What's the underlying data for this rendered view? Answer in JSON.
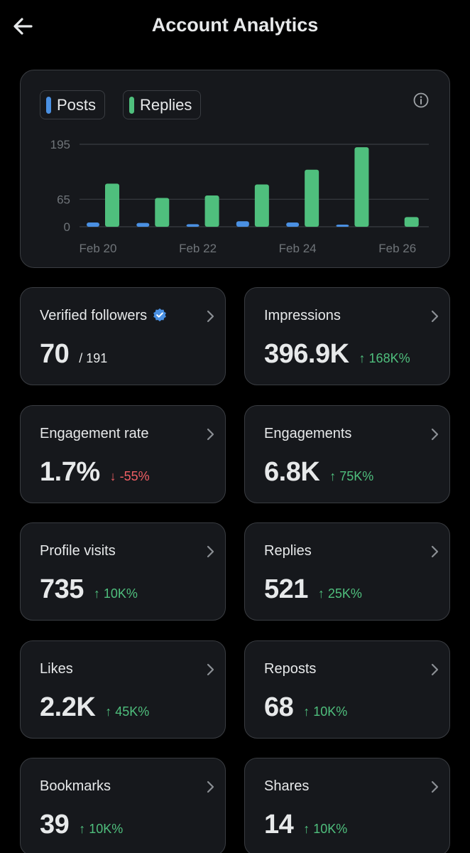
{
  "header": {
    "title": "Account Analytics"
  },
  "chart": {
    "legend": [
      {
        "label": "Posts",
        "color": "#4a90e2"
      },
      {
        "label": "Replies",
        "color": "#4fbf7d"
      }
    ]
  },
  "chart_data": {
    "type": "bar",
    "categories": [
      "Feb 20",
      "Feb 21",
      "Feb 22",
      "Feb 23",
      "Feb 24",
      "Feb 25",
      "Feb 26"
    ],
    "x_tick_labels": [
      "Feb 20",
      "Feb 22",
      "Feb 24",
      "Feb 26"
    ],
    "series": [
      {
        "name": "Posts",
        "color": "#4a90e2",
        "values": [
          10,
          9,
          6,
          13,
          10,
          5,
          0
        ]
      },
      {
        "name": "Replies",
        "color": "#4fbf7d",
        "values": [
          102,
          68,
          74,
          100,
          135,
          188,
          23
        ]
      }
    ],
    "y_ticks": [
      0,
      65,
      195
    ],
    "ylim": [
      0,
      195
    ],
    "grid": true,
    "legend_position": "top-left"
  },
  "metrics": [
    {
      "title": "Verified followers",
      "value": "70",
      "total": "/ 191",
      "change": "",
      "direction": "none",
      "verified": true
    },
    {
      "title": "Impressions",
      "value": "396.9K",
      "total": "",
      "change": "↑ 168K%",
      "direction": "up",
      "verified": false
    },
    {
      "title": "Engagement rate",
      "value": "1.7%",
      "total": "",
      "change": "↓ -55%",
      "direction": "down",
      "verified": false
    },
    {
      "title": "Engagements",
      "value": "6.8K",
      "total": "",
      "change": "↑ 75K%",
      "direction": "up",
      "verified": false
    },
    {
      "title": "Profile visits",
      "value": "735",
      "total": "",
      "change": "↑ 10K%",
      "direction": "up",
      "verified": false
    },
    {
      "title": "Replies",
      "value": "521",
      "total": "",
      "change": "↑ 25K%",
      "direction": "up",
      "verified": false
    },
    {
      "title": "Likes",
      "value": "2.2K",
      "total": "",
      "change": "↑ 45K%",
      "direction": "up",
      "verified": false
    },
    {
      "title": "Reposts",
      "value": "68",
      "total": "",
      "change": "↑ 10K%",
      "direction": "up",
      "verified": false
    },
    {
      "title": "Bookmarks",
      "value": "39",
      "total": "",
      "change": "↑ 10K%",
      "direction": "up",
      "verified": false
    },
    {
      "title": "Shares",
      "value": "14",
      "total": "",
      "change": "↑ 10K%",
      "direction": "up",
      "verified": false
    }
  ]
}
